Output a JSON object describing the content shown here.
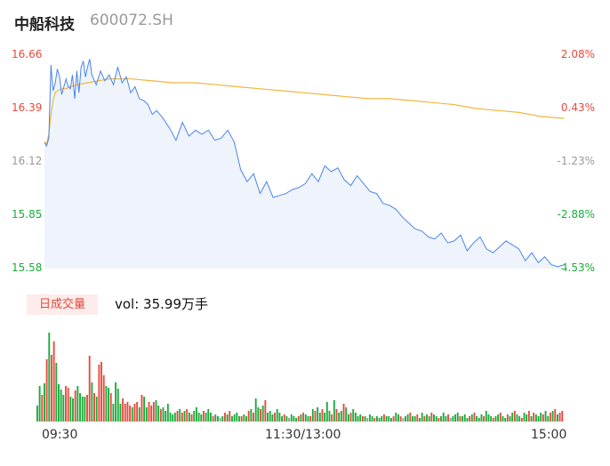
{
  "header": {
    "name": "中船科技",
    "code": "600072.SH"
  },
  "volume_panel": {
    "badge": "日成交量",
    "summary": "vol: 35.99万手"
  },
  "colors": {
    "price_line": "#4a86e8",
    "avg_line": "#f0b73d",
    "up": "#e84a3c",
    "down": "#1aab3b",
    "neutral": "#999999",
    "fill": "#eef3fc"
  },
  "chart_data": {
    "type": "line",
    "title": "",
    "xlabel": "",
    "ylabel": "",
    "prev_close": 16.32,
    "ylim": [
      15.58,
      16.66
    ],
    "y_ticks": [
      {
        "price": "16.66",
        "pct": "2.08%",
        "dir": "up"
      },
      {
        "price": "16.39",
        "pct": "0.43%",
        "dir": "up"
      },
      {
        "price": "16.12",
        "pct": "-1.23%",
        "dir": "neutral"
      },
      {
        "price": "15.85",
        "pct": "-2.88%",
        "dir": "down"
      },
      {
        "price": "15.58",
        "pct": "-4.53%",
        "dir": "down"
      }
    ],
    "x_ticks": [
      "09:30",
      "11:30/13:00",
      "15:00"
    ],
    "price_minutes": [
      0,
      1,
      2,
      3,
      4,
      5,
      6,
      7,
      8,
      9,
      10,
      11,
      12,
      13,
      14,
      15,
      16,
      17,
      18,
      19,
      20,
      21,
      22,
      24,
      26,
      28,
      30,
      32,
      34,
      36,
      38,
      40,
      42,
      44,
      46,
      48,
      50,
      52,
      55,
      58,
      61,
      64,
      67,
      70,
      73,
      76,
      79,
      82,
      85,
      88,
      91,
      94,
      97,
      100,
      103,
      106,
      109,
      112,
      115,
      118,
      121,
      124,
      127,
      130,
      133,
      136,
      139,
      142,
      145,
      148,
      151,
      154,
      157,
      160,
      163,
      166,
      169,
      172,
      175,
      178,
      181,
      184,
      187,
      190,
      193,
      196,
      199,
      202,
      205,
      208,
      211,
      214,
      217,
      220,
      223,
      226,
      229,
      232,
      235,
      238,
      241
    ],
    "price": [
      16.22,
      16.2,
      16.24,
      16.61,
      16.48,
      16.52,
      16.59,
      16.55,
      16.46,
      16.5,
      16.54,
      16.5,
      16.49,
      16.56,
      16.44,
      16.58,
      16.47,
      16.6,
      16.63,
      16.55,
      16.6,
      16.64,
      16.56,
      16.51,
      16.58,
      16.53,
      16.56,
      16.51,
      16.6,
      16.52,
      16.55,
      16.47,
      16.5,
      16.44,
      16.43,
      16.41,
      16.36,
      16.38,
      16.34,
      16.29,
      16.23,
      16.32,
      16.25,
      16.28,
      16.26,
      16.28,
      16.23,
      16.24,
      16.28,
      16.22,
      16.08,
      16.02,
      16.06,
      15.96,
      16.02,
      15.94,
      15.95,
      15.96,
      15.98,
      15.99,
      16.01,
      16.06,
      16.02,
      16.1,
      16.07,
      16.09,
      16.03,
      16.0,
      16.05,
      16.01,
      15.97,
      15.96,
      15.91,
      15.9,
      15.88,
      15.84,
      15.81,
      15.78,
      15.77,
      15.74,
      15.73,
      15.76,
      15.71,
      15.72,
      15.75,
      15.67,
      15.71,
      15.74,
      15.68,
      15.66,
      15.69,
      15.72,
      15.7,
      15.68,
      15.62,
      15.66,
      15.61,
      15.64,
      15.6,
      15.59,
      15.6
    ],
    "avg_minutes": [
      0,
      1,
      2,
      3,
      4,
      5,
      6,
      8,
      10,
      12,
      15,
      20,
      25,
      30,
      35,
      40,
      50,
      60,
      70,
      80,
      90,
      100,
      110,
      120,
      130,
      140,
      150,
      160,
      170,
      180,
      190,
      200,
      210,
      220,
      230,
      241
    ],
    "avg_price": [
      16.22,
      16.21,
      16.26,
      16.36,
      16.43,
      16.47,
      16.48,
      16.49,
      16.49,
      16.5,
      16.51,
      16.52,
      16.53,
      16.54,
      16.54,
      16.54,
      16.53,
      16.52,
      16.52,
      16.51,
      16.5,
      16.49,
      16.48,
      16.47,
      16.46,
      16.45,
      16.44,
      16.44,
      16.43,
      16.42,
      16.41,
      16.39,
      16.38,
      16.37,
      16.35,
      16.34
    ],
    "volume_max": 100,
    "volume": [
      {
        "v": 18,
        "d": "down"
      },
      {
        "v": 40,
        "d": "down"
      },
      {
        "v": 30,
        "d": "up"
      },
      {
        "v": 43,
        "d": "down"
      },
      {
        "v": 70,
        "d": "up"
      },
      {
        "v": 100,
        "d": "down"
      },
      {
        "v": 75,
        "d": "up"
      },
      {
        "v": 90,
        "d": "up"
      },
      {
        "v": 66,
        "d": "down"
      },
      {
        "v": 42,
        "d": "down"
      },
      {
        "v": 36,
        "d": "down"
      },
      {
        "v": 30,
        "d": "down"
      },
      {
        "v": 40,
        "d": "up"
      },
      {
        "v": 38,
        "d": "up"
      },
      {
        "v": 28,
        "d": "down"
      },
      {
        "v": 26,
        "d": "down"
      },
      {
        "v": 35,
        "d": "up"
      },
      {
        "v": 40,
        "d": "down"
      },
      {
        "v": 32,
        "d": "down"
      },
      {
        "v": 28,
        "d": "down"
      },
      {
        "v": 28,
        "d": "down"
      },
      {
        "v": 30,
        "d": "up"
      },
      {
        "v": 74,
        "d": "up"
      },
      {
        "v": 44,
        "d": "down"
      },
      {
        "v": 32,
        "d": "up"
      },
      {
        "v": 28,
        "d": "down"
      },
      {
        "v": 64,
        "d": "up"
      },
      {
        "v": 67,
        "d": "up"
      },
      {
        "v": 52,
        "d": "up"
      },
      {
        "v": 40,
        "d": "down"
      },
      {
        "v": 38,
        "d": "down"
      },
      {
        "v": 32,
        "d": "up"
      },
      {
        "v": 20,
        "d": "down"
      },
      {
        "v": 44,
        "d": "down"
      },
      {
        "v": 37,
        "d": "down"
      },
      {
        "v": 20,
        "d": "down"
      },
      {
        "v": 26,
        "d": "up"
      },
      {
        "v": 20,
        "d": "up"
      },
      {
        "v": 22,
        "d": "up"
      },
      {
        "v": 18,
        "d": "up"
      },
      {
        "v": 16,
        "d": "down"
      },
      {
        "v": 20,
        "d": "up"
      },
      {
        "v": 22,
        "d": "up"
      },
      {
        "v": 16,
        "d": "down"
      },
      {
        "v": 30,
        "d": "up"
      },
      {
        "v": 28,
        "d": "down"
      },
      {
        "v": 16,
        "d": "down"
      },
      {
        "v": 22,
        "d": "up"
      },
      {
        "v": 18,
        "d": "up"
      },
      {
        "v": 22,
        "d": "up"
      },
      {
        "v": 24,
        "d": "down"
      },
      {
        "v": 18,
        "d": "down"
      },
      {
        "v": 14,
        "d": "up"
      },
      {
        "v": 16,
        "d": "down"
      },
      {
        "v": 12,
        "d": "down"
      },
      {
        "v": 20,
        "d": "down"
      },
      {
        "v": 10,
        "d": "down"
      },
      {
        "v": 8,
        "d": "down"
      },
      {
        "v": 10,
        "d": "down"
      },
      {
        "v": 12,
        "d": "up"
      },
      {
        "v": 14,
        "d": "down"
      },
      {
        "v": 10,
        "d": "up"
      },
      {
        "v": 12,
        "d": "down"
      },
      {
        "v": 14,
        "d": "up"
      },
      {
        "v": 10,
        "d": "down"
      },
      {
        "v": 8,
        "d": "up"
      },
      {
        "v": 12,
        "d": "down"
      },
      {
        "v": 16,
        "d": "down"
      },
      {
        "v": 10,
        "d": "down"
      },
      {
        "v": 8,
        "d": "down"
      },
      {
        "v": 12,
        "d": "up"
      },
      {
        "v": 10,
        "d": "down"
      },
      {
        "v": 14,
        "d": "down"
      },
      {
        "v": 10,
        "d": "down"
      },
      {
        "v": 6,
        "d": "up"
      },
      {
        "v": 8,
        "d": "down"
      },
      {
        "v": 6,
        "d": "down"
      },
      {
        "v": 4,
        "d": "neutral"
      },
      {
        "v": 6,
        "d": "down"
      },
      {
        "v": 10,
        "d": "up"
      },
      {
        "v": 8,
        "d": "down"
      },
      {
        "v": 12,
        "d": "up"
      },
      {
        "v": 6,
        "d": "down"
      },
      {
        "v": 8,
        "d": "down"
      },
      {
        "v": 10,
        "d": "down"
      },
      {
        "v": 6,
        "d": "down"
      },
      {
        "v": 6,
        "d": "up"
      },
      {
        "v": 8,
        "d": "down"
      },
      {
        "v": 6,
        "d": "down"
      },
      {
        "v": 12,
        "d": "up"
      },
      {
        "v": 14,
        "d": "down"
      },
      {
        "v": 10,
        "d": "up"
      },
      {
        "v": 26,
        "d": "down"
      },
      {
        "v": 16,
        "d": "down"
      },
      {
        "v": 14,
        "d": "up"
      },
      {
        "v": 18,
        "d": "down"
      },
      {
        "v": 24,
        "d": "up"
      },
      {
        "v": 10,
        "d": "down"
      },
      {
        "v": 12,
        "d": "down"
      },
      {
        "v": 8,
        "d": "down"
      },
      {
        "v": 10,
        "d": "up"
      },
      {
        "v": 14,
        "d": "down"
      },
      {
        "v": 10,
        "d": "down"
      },
      {
        "v": 6,
        "d": "down"
      },
      {
        "v": 8,
        "d": "up"
      },
      {
        "v": 6,
        "d": "down"
      },
      {
        "v": 4,
        "d": "neutral"
      },
      {
        "v": 8,
        "d": "down"
      },
      {
        "v": 6,
        "d": "down"
      },
      {
        "v": 4,
        "d": "down"
      },
      {
        "v": 6,
        "d": "up"
      },
      {
        "v": 8,
        "d": "down"
      },
      {
        "v": 10,
        "d": "up"
      },
      {
        "v": 8,
        "d": "down"
      },
      {
        "v": 6,
        "d": "down"
      },
      {
        "v": 6,
        "d": "up"
      },
      {
        "v": 14,
        "d": "down"
      },
      {
        "v": 12,
        "d": "up"
      },
      {
        "v": 16,
        "d": "down"
      },
      {
        "v": 10,
        "d": "down"
      },
      {
        "v": 14,
        "d": "up"
      },
      {
        "v": 10,
        "d": "down"
      },
      {
        "v": 22,
        "d": "down"
      },
      {
        "v": 12,
        "d": "down"
      },
      {
        "v": 8,
        "d": "up"
      },
      {
        "v": 24,
        "d": "down"
      },
      {
        "v": 14,
        "d": "up"
      },
      {
        "v": 10,
        "d": "down"
      },
      {
        "v": 12,
        "d": "down"
      },
      {
        "v": 20,
        "d": "up"
      },
      {
        "v": 16,
        "d": "down"
      },
      {
        "v": 8,
        "d": "down"
      },
      {
        "v": 10,
        "d": "up"
      },
      {
        "v": 14,
        "d": "down"
      },
      {
        "v": 10,
        "d": "down"
      },
      {
        "v": 6,
        "d": "down"
      },
      {
        "v": 8,
        "d": "down"
      },
      {
        "v": 6,
        "d": "up"
      },
      {
        "v": 6,
        "d": "down"
      },
      {
        "v": 4,
        "d": "neutral"
      },
      {
        "v": 8,
        "d": "down"
      },
      {
        "v": 6,
        "d": "down"
      },
      {
        "v": 4,
        "d": "up"
      },
      {
        "v": 6,
        "d": "down"
      },
      {
        "v": 4,
        "d": "down"
      },
      {
        "v": 6,
        "d": "down"
      },
      {
        "v": 8,
        "d": "up"
      },
      {
        "v": 6,
        "d": "down"
      },
      {
        "v": 6,
        "d": "down"
      },
      {
        "v": 4,
        "d": "down"
      },
      {
        "v": 6,
        "d": "up"
      },
      {
        "v": 10,
        "d": "down"
      },
      {
        "v": 8,
        "d": "down"
      },
      {
        "v": 6,
        "d": "up"
      },
      {
        "v": 4,
        "d": "neutral"
      },
      {
        "v": 6,
        "d": "down"
      },
      {
        "v": 8,
        "d": "down"
      },
      {
        "v": 10,
        "d": "up"
      },
      {
        "v": 6,
        "d": "down"
      },
      {
        "v": 6,
        "d": "down"
      },
      {
        "v": 8,
        "d": "up"
      },
      {
        "v": 4,
        "d": "down"
      },
      {
        "v": 10,
        "d": "down"
      },
      {
        "v": 6,
        "d": "up"
      },
      {
        "v": 8,
        "d": "down"
      },
      {
        "v": 6,
        "d": "down"
      },
      {
        "v": 10,
        "d": "up"
      },
      {
        "v": 8,
        "d": "down"
      },
      {
        "v": 6,
        "d": "down"
      },
      {
        "v": 4,
        "d": "up"
      },
      {
        "v": 6,
        "d": "down"
      },
      {
        "v": 10,
        "d": "down"
      },
      {
        "v": 6,
        "d": "down"
      },
      {
        "v": 8,
        "d": "up"
      },
      {
        "v": 4,
        "d": "neutral"
      },
      {
        "v": 6,
        "d": "down"
      },
      {
        "v": 8,
        "d": "down"
      },
      {
        "v": 10,
        "d": "down"
      },
      {
        "v": 6,
        "d": "up"
      },
      {
        "v": 6,
        "d": "down"
      },
      {
        "v": 8,
        "d": "down"
      },
      {
        "v": 4,
        "d": "down"
      },
      {
        "v": 6,
        "d": "up"
      },
      {
        "v": 8,
        "d": "down"
      },
      {
        "v": 10,
        "d": "up"
      },
      {
        "v": 6,
        "d": "down"
      },
      {
        "v": 4,
        "d": "down"
      },
      {
        "v": 8,
        "d": "down"
      },
      {
        "v": 6,
        "d": "up"
      },
      {
        "v": 12,
        "d": "down"
      },
      {
        "v": 8,
        "d": "down"
      },
      {
        "v": 6,
        "d": "down"
      },
      {
        "v": 4,
        "d": "up"
      },
      {
        "v": 6,
        "d": "down"
      },
      {
        "v": 8,
        "d": "down"
      },
      {
        "v": 10,
        "d": "up"
      },
      {
        "v": 6,
        "d": "down"
      },
      {
        "v": 4,
        "d": "down"
      },
      {
        "v": 8,
        "d": "up"
      },
      {
        "v": 6,
        "d": "down"
      },
      {
        "v": 10,
        "d": "down"
      },
      {
        "v": 12,
        "d": "up"
      },
      {
        "v": 8,
        "d": "down"
      },
      {
        "v": 6,
        "d": "down"
      },
      {
        "v": 4,
        "d": "up"
      },
      {
        "v": 10,
        "d": "down"
      },
      {
        "v": 8,
        "d": "down"
      },
      {
        "v": 12,
        "d": "up"
      },
      {
        "v": 6,
        "d": "down"
      },
      {
        "v": 10,
        "d": "up"
      },
      {
        "v": 8,
        "d": "down"
      },
      {
        "v": 6,
        "d": "down"
      },
      {
        "v": 10,
        "d": "down"
      },
      {
        "v": 8,
        "d": "up"
      },
      {
        "v": 12,
        "d": "down"
      },
      {
        "v": 6,
        "d": "down"
      },
      {
        "v": 10,
        "d": "up"
      },
      {
        "v": 12,
        "d": "down"
      },
      {
        "v": 14,
        "d": "up"
      },
      {
        "v": 8,
        "d": "down"
      },
      {
        "v": 10,
        "d": "up"
      },
      {
        "v": 12,
        "d": "up"
      }
    ]
  }
}
